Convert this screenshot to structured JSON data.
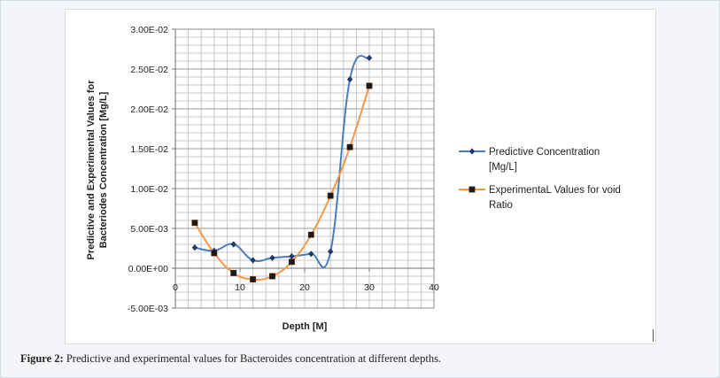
{
  "caption": {
    "label": "Figure 2:",
    "text": " Predictive and experimental values for Bacteroides concentration at different depths."
  },
  "chart_data": {
    "type": "line",
    "xlabel": "Depth  [M]",
    "ylabel_lines": [
      "Predictive and Experimental Values for",
      "Bacteriodes Concentration [Mg/L]"
    ],
    "xlim": [
      0,
      40
    ],
    "ylim": [
      -0.005,
      0.03
    ],
    "x_ticks": [
      0,
      10,
      20,
      30,
      40
    ],
    "x_tick_labels": [
      "0",
      "10",
      "20",
      "30",
      "40"
    ],
    "y_ticks": [
      0.03,
      0.025,
      0.02,
      0.015,
      0.01,
      0.005,
      0,
      -0.005
    ],
    "y_tick_labels": [
      "3.00E-02",
      "2.50E-02",
      "2.00E-02",
      "1.50E-02",
      "1.00E-02",
      "5.00E-03",
      "0.00E+00",
      "-5.00E-03"
    ],
    "grid": true,
    "legend_position": "right",
    "series": [
      {
        "name_lines": [
          "Predictive Concentration",
          "[Mg/L]"
        ],
        "color": "#4a7ebb",
        "marker": "diamond",
        "x": [
          3,
          6,
          9,
          12,
          15,
          18,
          21,
          24,
          27,
          30
        ],
        "y": [
          0.0026,
          0.0022,
          0.003,
          0.001,
          0.0013,
          0.0015,
          0.0018,
          0.0021,
          0.0237,
          0.0264
        ]
      },
      {
        "name_lines": [
          "ExperimentaL Values for void",
          "Ratio"
        ],
        "color": "#f79646",
        "marker": "square",
        "x": [
          3,
          6,
          9,
          12,
          15,
          18,
          21,
          24,
          27,
          30
        ],
        "y": [
          0.0057,
          0.0019,
          -0.0006,
          -0.0014,
          -0.001,
          0.0008,
          0.0042,
          0.0091,
          0.0152,
          0.0229
        ]
      }
    ]
  }
}
